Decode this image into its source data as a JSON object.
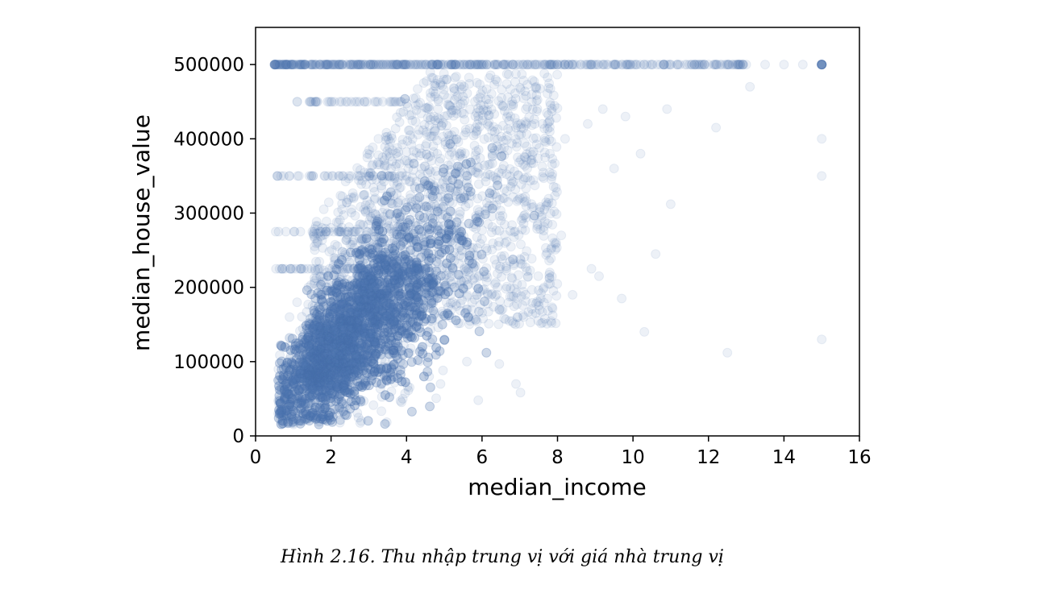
{
  "figure": {
    "caption": "Hình 2.16. Thu nhập trung vị với giá nhà trung vị"
  },
  "chart_data": {
    "type": "scatter",
    "title": "",
    "xlabel": "median_income",
    "ylabel": "median_house_value",
    "xlim": [
      0,
      16
    ],
    "ylim": [
      0,
      550000
    ],
    "x_ticks": [
      "0",
      "2",
      "4",
      "6",
      "8",
      "10",
      "12",
      "14",
      "16"
    ],
    "y_ticks": [
      "0",
      "100000",
      "200000",
      "300000",
      "400000",
      "500000"
    ],
    "marker_color": "#4c72b0",
    "marker_alpha": 0.1,
    "grid": false,
    "legend": "none",
    "point_density_note": "",
    "capped_value": 500000,
    "series": [
      {
        "name": "",
        "x": [
          0.5,
          0.8,
          1.0,
          1.2,
          1.3,
          1.5,
          1.6,
          1.7,
          1.8,
          1.9,
          2.0,
          2.1,
          2.2,
          2.3,
          2.4,
          2.5,
          2.6,
          2.7,
          2.8,
          2.9,
          3.0,
          3.1,
          3.2,
          3.3,
          3.4,
          3.5,
          3.6,
          3.7,
          3.8,
          3.9,
          4.0,
          4.1,
          4.2,
          4.3,
          4.4,
          4.5,
          4.6,
          4.7,
          4.8,
          4.9,
          5.0,
          5.1,
          5.2,
          5.3,
          5.4,
          5.5,
          5.6,
          5.7,
          5.8,
          5.9,
          6.0,
          6.2,
          6.4,
          6.6,
          6.8,
          7.0,
          7.2,
          7.4,
          7.6,
          7.8,
          8.0,
          8.2,
          8.4,
          8.6,
          8.8,
          9.0,
          9.3,
          9.6,
          10.0,
          10.2,
          10.5,
          10.8,
          11.0,
          11.5,
          12.0,
          12.5,
          13.0,
          13.5,
          14.0,
          14.5,
          15.0,
          1.5,
          2.0,
          2.5,
          3.0,
          3.5,
          4.0,
          4.5,
          5.0,
          5.5,
          6.0,
          6.5,
          7.0,
          1.8,
          2.2,
          2.8,
          3.2,
          3.8,
          4.2,
          4.8,
          5.2,
          5.8,
          6.2,
          6.8,
          7.2,
          7.8,
          8.2,
          8.8,
          9.2,
          9.8,
          10.2,
          10.9,
          12.2,
          13.1,
          15.0,
          15.0,
          15.0,
          15.0,
          10.3,
          9.7,
          12.5,
          11.0,
          8.1,
          7.6,
          10.6,
          9.5,
          8.9,
          6.9,
          5.9,
          7.5,
          8.4,
          9.1,
          1.1,
          0.7,
          0.6,
          0.9,
          1.4,
          2.6,
          3.4,
          4.4,
          5.4,
          6.4,
          7.4,
          3.6,
          4.6,
          5.6,
          2.4,
          3.9,
          4.9
        ],
        "y": [
          500000,
          500000,
          500000,
          500000,
          500000,
          500000,
          500000,
          500000,
          500000,
          500000,
          500000,
          500000,
          500000,
          500000,
          500000,
          500000,
          500000,
          500000,
          500000,
          500000,
          500000,
          500000,
          500000,
          500000,
          500000,
          500000,
          500000,
          500000,
          500000,
          500000,
          500000,
          500000,
          500000,
          500000,
          500000,
          500000,
          500000,
          500000,
          500000,
          500000,
          500000,
          500000,
          500000,
          500000,
          500000,
          500000,
          500000,
          500000,
          500000,
          500000,
          500000,
          500000,
          500000,
          500000,
          500000,
          500000,
          500000,
          500000,
          500000,
          500000,
          500000,
          500000,
          500000,
          500000,
          500000,
          500000,
          500000,
          500000,
          500000,
          500000,
          500000,
          500000,
          500000,
          500000,
          500000,
          500000,
          500000,
          500000,
          500000,
          500000,
          500000,
          60000,
          75000,
          95000,
          115000,
          140000,
          165000,
          190000,
          215000,
          240000,
          265000,
          290000,
          320000,
          90000,
          110000,
          135000,
          160000,
          185000,
          210000,
          235000,
          260000,
          285000,
          310000,
          340000,
          360000,
          380000,
          400000,
          420000,
          440000,
          430000,
          380000,
          440000,
          415000,
          470000,
          400000,
          350000,
          130000,
          500000,
          140000,
          185000,
          112000,
          312000,
          270000,
          420000,
          245000,
          360000,
          225000,
          70000,
          48000,
          180000,
          190000,
          215000,
          180000,
          120000,
          30000,
          160000,
          200000,
          320000,
          350000,
          360000,
          380000,
          390000,
          420000,
          60000,
          80000,
          100000,
          40000,
          50000,
          70000
        ]
      }
    ]
  }
}
